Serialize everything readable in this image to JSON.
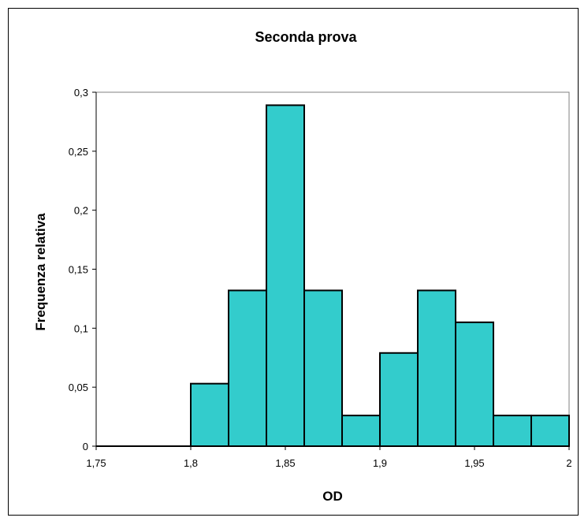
{
  "chart_data": {
    "type": "bar",
    "title": "Seconda prova",
    "xlabel": "OD",
    "ylabel": "Frequenza relativa",
    "xlim": [
      1.75,
      2
    ],
    "ylim": [
      0,
      0.3
    ],
    "x_ticks": [
      "1,75",
      "1,8",
      "1,85",
      "1,9",
      "1,95",
      "2"
    ],
    "y_ticks": [
      "0",
      "0,05",
      "0,1",
      "0,15",
      "0,2",
      "0,25",
      "0,3"
    ],
    "bins": [
      {
        "start": 1.8,
        "end": 1.82,
        "value": 0.053
      },
      {
        "start": 1.82,
        "end": 1.84,
        "value": 0.132
      },
      {
        "start": 1.84,
        "end": 1.86,
        "value": 0.289
      },
      {
        "start": 1.86,
        "end": 1.88,
        "value": 0.132
      },
      {
        "start": 1.88,
        "end": 1.9,
        "value": 0.026
      },
      {
        "start": 1.9,
        "end": 1.92,
        "value": 0.079
      },
      {
        "start": 1.92,
        "end": 1.94,
        "value": 0.132
      },
      {
        "start": 1.94,
        "end": 1.96,
        "value": 0.105
      },
      {
        "start": 1.96,
        "end": 1.98,
        "value": 0.026
      },
      {
        "start": 1.98,
        "end": 2.0,
        "value": 0.026
      }
    ],
    "bar_color": "#33CCCC",
    "bar_edge_color": "#000000",
    "grid": false,
    "legend": "none"
  }
}
